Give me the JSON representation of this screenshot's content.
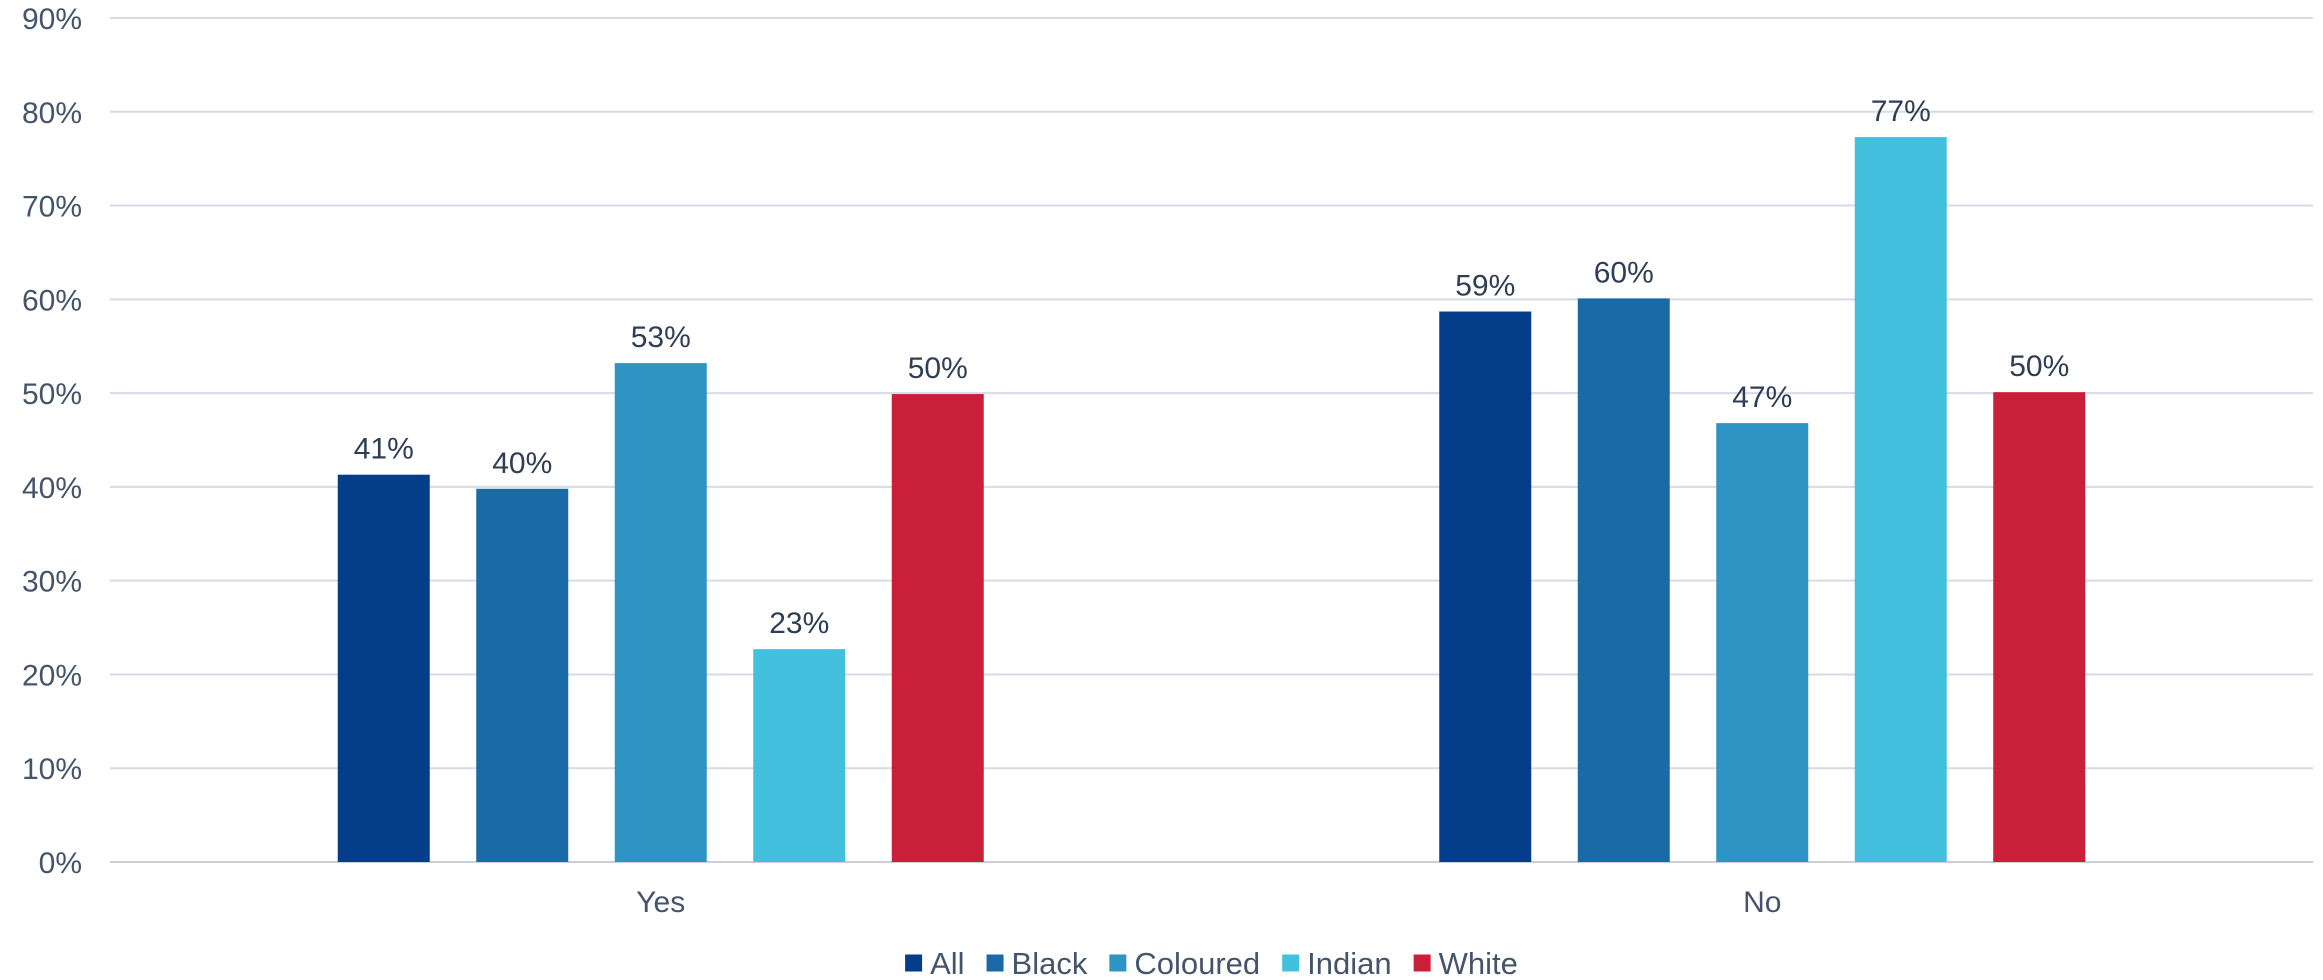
{
  "chart_data": {
    "type": "bar",
    "title": "",
    "xlabel": "",
    "ylabel": "",
    "categories": [
      "Yes",
      "No"
    ],
    "ylim": [
      0,
      90
    ],
    "y_ticks": [
      "0%",
      "10%",
      "20%",
      "30%",
      "40%",
      "50%",
      "60%",
      "70%",
      "80%",
      "90%"
    ],
    "grid": true,
    "legend_position": "bottom",
    "series": [
      {
        "name": "All",
        "color": "#043e8a",
        "values": [
          41.3,
          58.7
        ],
        "labels": [
          "41%",
          "59%"
        ]
      },
      {
        "name": "Black",
        "color": "#1a6aa6",
        "values": [
          39.8,
          60.1
        ],
        "labels": [
          "40%",
          "60%"
        ]
      },
      {
        "name": "Coloured",
        "color": "#2e94c4",
        "values": [
          53.2,
          46.8
        ],
        "labels": [
          "53%",
          "47%"
        ]
      },
      {
        "name": "Indian",
        "color": "#43c0dd",
        "values": [
          22.7,
          77.3
        ],
        "labels": [
          "23%",
          "77%"
        ]
      },
      {
        "name": "White",
        "color": "#c91f39",
        "values": [
          49.9,
          50.1
        ],
        "labels": [
          "50%",
          "50%"
        ]
      }
    ]
  }
}
